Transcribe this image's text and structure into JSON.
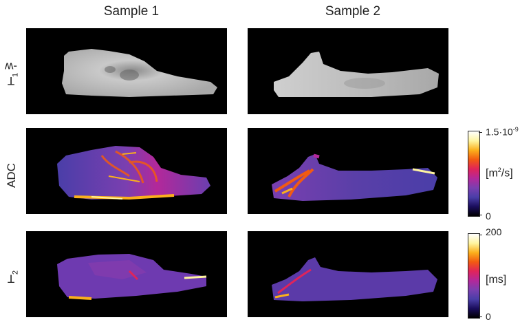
{
  "columns": {
    "sample1": "Sample 1",
    "sample2": "Sample 2"
  },
  "rows": {
    "t1w": {
      "main": "T",
      "sub": "1",
      "rest": "-w"
    },
    "adc": {
      "label": "ADC"
    },
    "t2": {
      "main": "T",
      "sub": "2"
    }
  },
  "colorbars": {
    "adc": {
      "max_base": "1.5·10",
      "max_exp": "-9",
      "unit_base": "[m",
      "unit_exp": "2",
      "unit_rest": "/s]",
      "min": "0"
    },
    "t2": {
      "max": "200",
      "unit": "[ms]",
      "min": "0"
    }
  },
  "colors": {
    "background": "#000000",
    "t1_tissue": "#b8b8b8",
    "cmap": [
      "#000000",
      "#1a0d5c",
      "#4a3ea8",
      "#7a3fb0",
      "#b3289a",
      "#e0245a",
      "#f25a12",
      "#fbb01c",
      "#fff5a0",
      "#ffffff"
    ]
  }
}
